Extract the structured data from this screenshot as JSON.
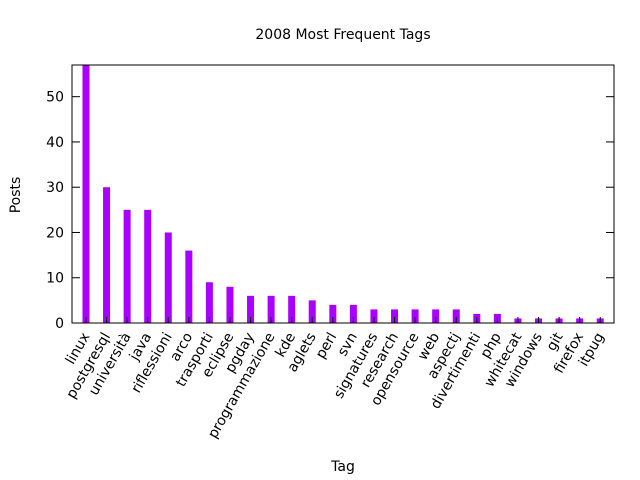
{
  "chart_data": {
    "type": "bar",
    "title": "2008 Most Frequent Tags",
    "xlabel": "Tag",
    "ylabel": "Posts",
    "ylim": [
      0,
      57
    ],
    "yticks": [
      0,
      10,
      20,
      30,
      40,
      50
    ],
    "grid": false,
    "legend": "none",
    "bar_color": "#aa00ff",
    "categories": [
      "linux",
      "postgresql",
      "università",
      "java",
      "riflessioni",
      "arco",
      "trasporti",
      "eclipse",
      "pgday",
      "programmazione",
      "kde",
      "aglets",
      "perl",
      "svn",
      "signatures",
      "research",
      "opensource",
      "web",
      "aspectj",
      "divertimenti",
      "php",
      "whitecat",
      "windows",
      "git",
      "firefox",
      "itpug"
    ],
    "values": [
      57,
      30,
      25,
      25,
      20,
      16,
      9,
      8,
      6,
      6,
      6,
      5,
      4,
      4,
      3,
      3,
      3,
      3,
      3,
      2,
      2,
      1,
      1,
      1,
      1,
      1
    ]
  }
}
